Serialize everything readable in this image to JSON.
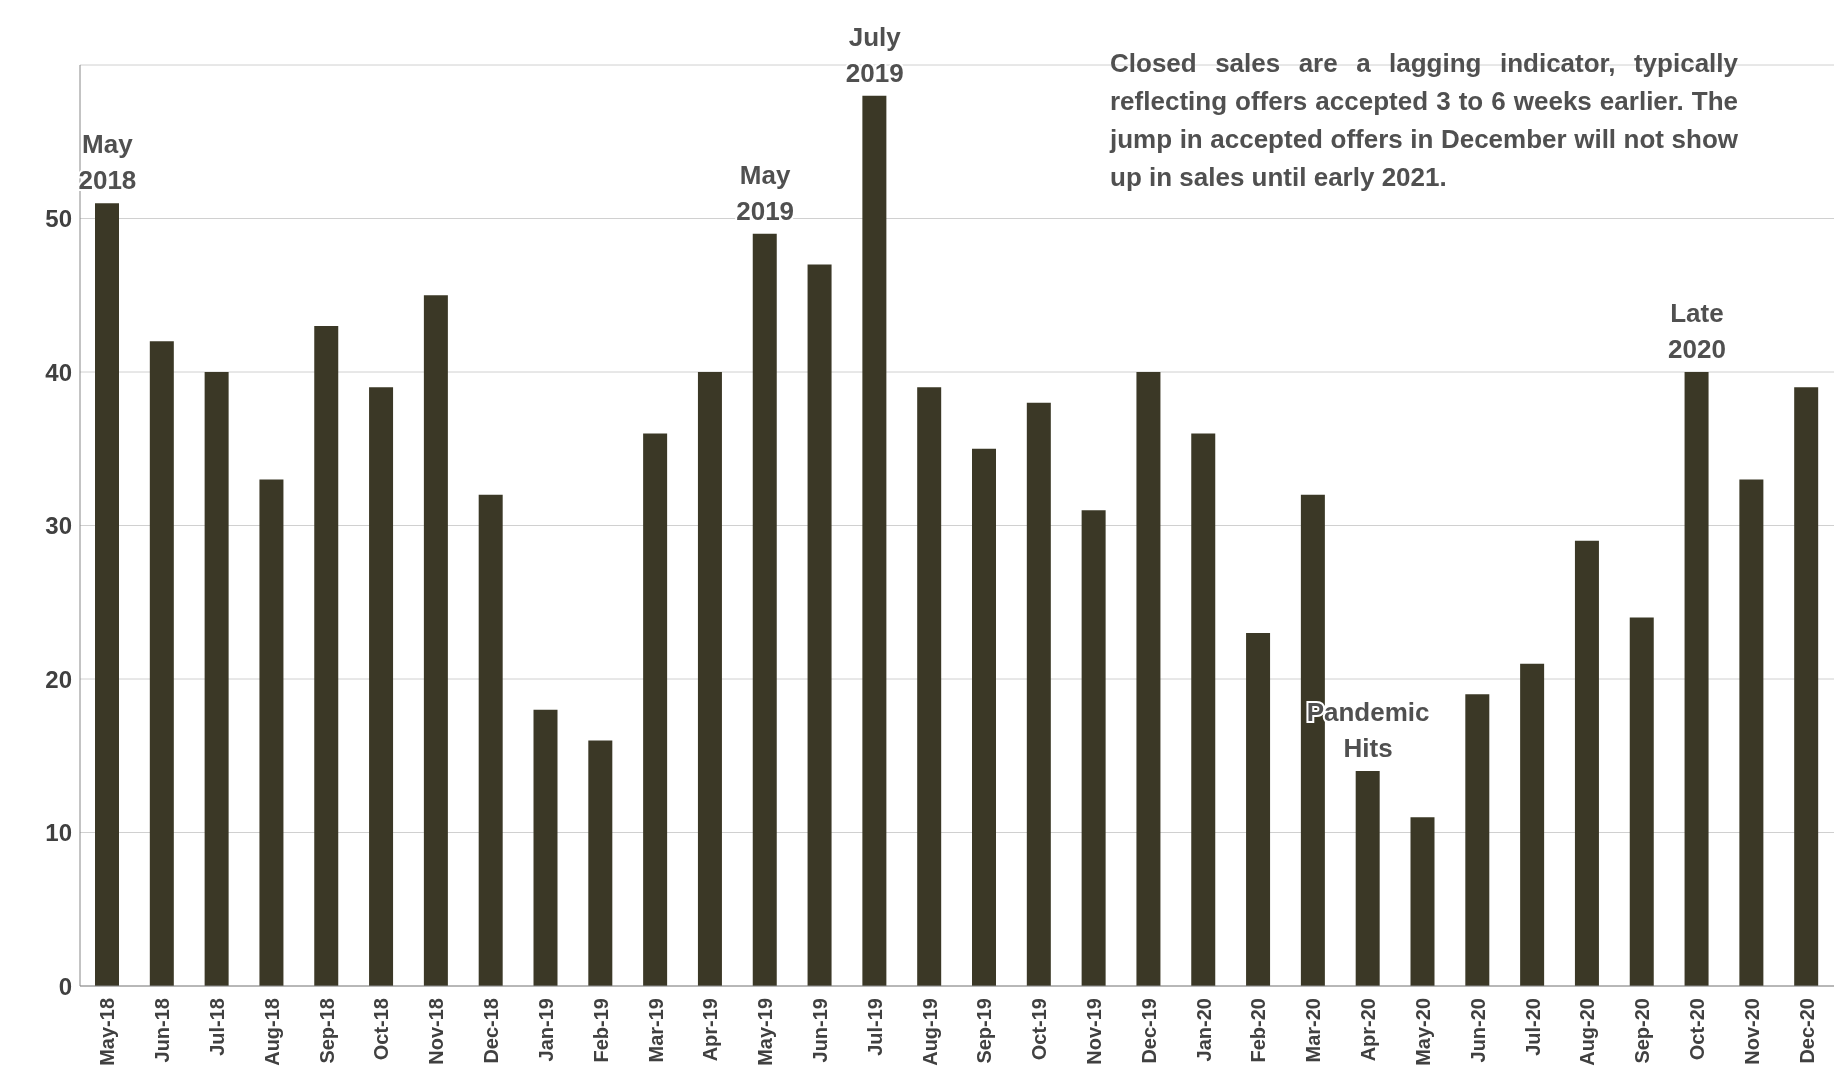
{
  "chart_data": {
    "type": "bar",
    "categories": [
      "May-18",
      "Jun-18",
      "Jul-18",
      "Aug-18",
      "Sep-18",
      "Oct-18",
      "Nov-18",
      "Dec-18",
      "Jan-19",
      "Feb-19",
      "Mar-19",
      "Apr-19",
      "May-19",
      "Jun-19",
      "Jul-19",
      "Aug-19",
      "Sep-19",
      "Oct-19",
      "Nov-19",
      "Dec-19",
      "Jan-20",
      "Feb-20",
      "Mar-20",
      "Apr-20",
      "May-20",
      "Jun-20",
      "Jul-20",
      "Aug-20",
      "Sep-20",
      "Oct-20",
      "Nov-20",
      "Dec-20"
    ],
    "values": [
      51,
      42,
      40,
      33,
      43,
      39,
      45,
      32,
      18,
      16,
      36,
      40,
      49,
      47,
      58,
      39,
      35,
      38,
      31,
      40,
      36,
      23,
      32,
      14,
      11,
      19,
      21,
      29,
      24,
      40,
      33,
      39
    ],
    "color": "#3b3826",
    "ylim": [
      0,
      60
    ],
    "yticks": [
      0,
      10,
      20,
      30,
      40,
      50
    ],
    "grid": "y",
    "legend": false,
    "annotations": [
      {
        "text": "May 2018",
        "x": "May-18",
        "y": 51
      },
      {
        "text": "May 2019",
        "x": "May-19",
        "y": 49
      },
      {
        "text": "July 2019",
        "x": "Jul-19",
        "y": 58
      },
      {
        "text": "Late 2020",
        "x": "Oct-20",
        "y": 40
      },
      {
        "text": "Pandemic Hits",
        "x": "Apr-20",
        "y": 14
      },
      "Closed sales are a lagging indicator, typically reflecting offers accepted 3 to 6 weeks earlier. The jump in accepted offers in December will not show up in sales until early 2021."
    ]
  }
}
